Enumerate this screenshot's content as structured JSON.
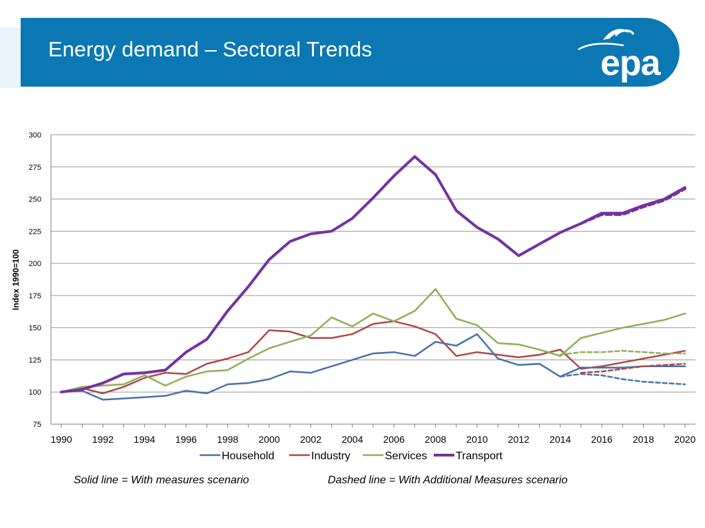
{
  "banner": {
    "title": "Energy demand – Sectoral Trends",
    "logo_text": "epa"
  },
  "captions": {
    "solid": "Solid line = With measures scenario",
    "dashed": "Dashed line = With Additional Measures scenario"
  },
  "colors": {
    "banner": "#0b78b4",
    "household": "#4a72a6",
    "industry": "#b04848",
    "services": "#8faf58",
    "transport": "#7332a0"
  },
  "chart_data": {
    "type": "line",
    "title": "",
    "xlabel": "",
    "ylabel": "Index 1990=100",
    "xlim": [
      1990,
      2020
    ],
    "ylim": [
      75,
      300
    ],
    "yticks": [
      75,
      100,
      125,
      150,
      175,
      200,
      225,
      250,
      275,
      300
    ],
    "xticks": [
      1990,
      1992,
      1994,
      1996,
      1998,
      2000,
      2002,
      2004,
      2006,
      2008,
      2010,
      2012,
      2014,
      2016,
      2018,
      2020
    ],
    "grid": true,
    "legend": [
      "Household",
      "Industry",
      "Services",
      "Transport"
    ],
    "legend_position": "bottom",
    "series": [
      {
        "name": "Household",
        "color": "#4a72a6",
        "style": "solid",
        "x": [
          1990,
          1991,
          1992,
          1993,
          1994,
          1995,
          1996,
          1997,
          1998,
          1999,
          2000,
          2001,
          2002,
          2003,
          2004,
          2005,
          2006,
          2007,
          2008,
          2009,
          2010,
          2011,
          2012,
          2013,
          2014,
          2015,
          2016,
          2017,
          2018,
          2019,
          2020
        ],
        "values": [
          100,
          101,
          94,
          95,
          96,
          97,
          101,
          99,
          106,
          107,
          110,
          116,
          115,
          120,
          125,
          130,
          131,
          128,
          139,
          136,
          145,
          126,
          121,
          122,
          112,
          119,
          119,
          119,
          120,
          120,
          120
        ]
      },
      {
        "name": "Industry",
        "color": "#b04848",
        "style": "solid",
        "x": [
          1990,
          1991,
          1992,
          1993,
          1994,
          1995,
          1996,
          1997,
          1998,
          1999,
          2000,
          2001,
          2002,
          2003,
          2004,
          2005,
          2006,
          2007,
          2008,
          2009,
          2010,
          2011,
          2012,
          2013,
          2014,
          2015,
          2016,
          2017,
          2018,
          2019,
          2020
        ],
        "values": [
          100,
          103,
          99,
          104,
          111,
          115,
          114,
          122,
          126,
          131,
          148,
          147,
          142,
          142,
          145,
          153,
          155,
          151,
          145,
          128,
          131,
          129,
          127,
          129,
          133,
          118,
          120,
          123,
          126,
          129,
          132
        ]
      },
      {
        "name": "Services",
        "color": "#8faf58",
        "style": "solid",
        "x": [
          1990,
          1991,
          1992,
          1993,
          1994,
          1995,
          1996,
          1997,
          1998,
          1999,
          2000,
          2001,
          2002,
          2003,
          2004,
          2005,
          2006,
          2007,
          2008,
          2009,
          2010,
          2011,
          2012,
          2013,
          2014,
          2015,
          2016,
          2017,
          2018,
          2019,
          2020
        ],
        "values": [
          100,
          104,
          105,
          106,
          113,
          105,
          112,
          116,
          117,
          126,
          134,
          139,
          144,
          158,
          151,
          161,
          155,
          163,
          180,
          157,
          152,
          138,
          137,
          133,
          128,
          142,
          146,
          150,
          153,
          156,
          161
        ]
      },
      {
        "name": "Transport",
        "color": "#7332a0",
        "style": "solid",
        "x": [
          1990,
          1991,
          1992,
          1993,
          1994,
          1995,
          1996,
          1997,
          1998,
          1999,
          2000,
          2001,
          2002,
          2003,
          2004,
          2005,
          2006,
          2007,
          2008,
          2009,
          2010,
          2011,
          2012,
          2013,
          2014,
          2015,
          2016,
          2017,
          2018,
          2019,
          2020
        ],
        "values": [
          100,
          102,
          107,
          114,
          115,
          117,
          131,
          141,
          163,
          182,
          203,
          217,
          223,
          225,
          235,
          251,
          268,
          283,
          269,
          241,
          228,
          219,
          206,
          215,
          224,
          231,
          239,
          239,
          245,
          250,
          259
        ]
      },
      {
        "name": "Household (WAM)",
        "color": "#4a72a6",
        "style": "dashed",
        "x": [
          2014,
          2015,
          2016,
          2017,
          2018,
          2019,
          2020
        ],
        "values": [
          112,
          114,
          113,
          110,
          108,
          107,
          106
        ]
      },
      {
        "name": "Industry (WAM)",
        "color": "#b04848",
        "style": "dashed",
        "x": [
          2015,
          2016,
          2017,
          2018,
          2019,
          2020
        ],
        "values": [
          115,
          116,
          118,
          120,
          121,
          122
        ]
      },
      {
        "name": "Services (WAM)",
        "color": "#8faf58",
        "style": "dashed",
        "x": [
          2014,
          2015,
          2016,
          2017,
          2018,
          2019,
          2020
        ],
        "values": [
          129,
          131,
          131,
          132,
          131,
          130,
          130
        ]
      },
      {
        "name": "Transport (WAM)",
        "color": "#7332a0",
        "style": "dashed",
        "x": [
          2015,
          2016,
          2017,
          2018,
          2019,
          2020
        ],
        "values": [
          231,
          238,
          238,
          244,
          249,
          258
        ]
      }
    ]
  }
}
